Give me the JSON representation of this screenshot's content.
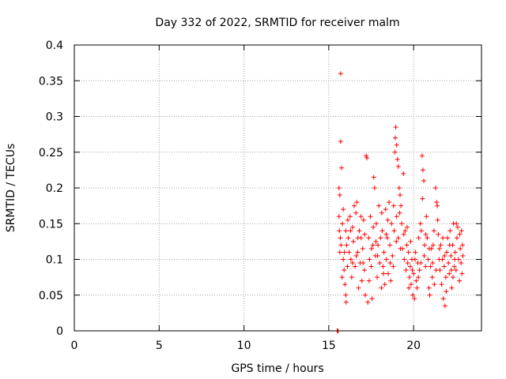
{
  "chart_data": {
    "type": "scatter",
    "title": "Day 332 of 2022, SRMTID for receiver malm",
    "xlabel": "GPS time / hours",
    "ylabel": "SRMTID / TECUs",
    "xlim": [
      0,
      24
    ],
    "ylim": [
      0,
      0.4
    ],
    "x_ticks": [
      0,
      5,
      10,
      15,
      20
    ],
    "x_tick_labels": [
      "0",
      "5",
      "10",
      "15",
      "20"
    ],
    "y_ticks": [
      0,
      0.05,
      0.1,
      0.15,
      0.2,
      0.25,
      0.3,
      0.35,
      0.4
    ],
    "y_tick_labels": [
      "0",
      "0.05",
      "0.1",
      "0.15",
      "0.2",
      "0.25",
      "0.3",
      "0.35",
      "0.4"
    ],
    "grid": true,
    "marker": "+",
    "series": [
      {
        "name": "SRMTID",
        "color": "#ff0000",
        "points": [
          [
            15.5,
            0.0
          ],
          [
            15.52,
            0.0
          ],
          [
            15.55,
            0.0
          ],
          [
            15.7,
            0.36
          ],
          [
            15.7,
            0.265
          ],
          [
            15.75,
            0.228
          ],
          [
            15.6,
            0.2
          ],
          [
            15.65,
            0.19
          ],
          [
            15.6,
            0.16
          ],
          [
            15.62,
            0.14
          ],
          [
            15.68,
            0.13
          ],
          [
            15.72,
            0.12
          ],
          [
            15.65,
            0.11
          ],
          [
            15.8,
            0.15
          ],
          [
            15.85,
            0.1
          ],
          [
            15.9,
            0.085
          ],
          [
            15.78,
            0.075
          ],
          [
            15.95,
            0.065
          ],
          [
            16.0,
            0.14
          ],
          [
            16.05,
            0.12
          ],
          [
            16.1,
            0.09
          ],
          [
            16.0,
            0.05
          ],
          [
            16.02,
            0.04
          ],
          [
            16.15,
            0.13
          ],
          [
            16.2,
            0.11
          ],
          [
            16.25,
            0.16
          ],
          [
            16.3,
            0.1
          ],
          [
            16.35,
            0.075
          ],
          [
            16.4,
            0.145
          ],
          [
            16.45,
            0.125
          ],
          [
            16.5,
            0.175
          ],
          [
            16.55,
            0.09
          ],
          [
            16.6,
            0.165
          ],
          [
            16.65,
            0.18
          ],
          [
            16.7,
            0.11
          ],
          [
            16.75,
            0.06
          ],
          [
            16.8,
            0.14
          ],
          [
            16.85,
            0.095
          ],
          [
            16.9,
            0.13
          ],
          [
            16.95,
            0.07
          ],
          [
            17.0,
            0.115
          ],
          [
            17.05,
            0.155
          ],
          [
            17.1,
            0.085
          ],
          [
            17.2,
            0.245
          ],
          [
            17.25,
            0.242
          ],
          [
            17.15,
            0.05
          ],
          [
            17.3,
            0.04
          ],
          [
            17.35,
            0.13
          ],
          [
            17.4,
            0.1
          ],
          [
            17.45,
            0.16
          ],
          [
            17.5,
            0.09
          ],
          [
            17.55,
            0.045
          ],
          [
            17.6,
            0.12
          ],
          [
            17.65,
            0.215
          ],
          [
            17.7,
            0.2
          ],
          [
            17.75,
            0.105
          ],
          [
            17.8,
            0.15
          ],
          [
            17.85,
            0.075
          ],
          [
            17.9,
            0.12
          ],
          [
            17.95,
            0.175
          ],
          [
            18.0,
            0.095
          ],
          [
            18.05,
            0.13
          ],
          [
            18.1,
            0.06
          ],
          [
            18.15,
            0.14
          ],
          [
            18.2,
            0.09
          ],
          [
            18.25,
            0.11
          ],
          [
            18.3,
            0.065
          ],
          [
            18.35,
            0.17
          ],
          [
            18.4,
            0.1
          ],
          [
            18.45,
            0.13
          ],
          [
            18.5,
            0.08
          ],
          [
            18.55,
            0.18
          ],
          [
            18.6,
            0.12
          ],
          [
            18.65,
            0.07
          ],
          [
            18.7,
            0.15
          ],
          [
            18.75,
            0.105
          ],
          [
            18.8,
            0.09
          ],
          [
            18.85,
            0.14
          ],
          [
            18.9,
            0.25
          ],
          [
            18.92,
            0.27
          ],
          [
            18.95,
            0.285
          ],
          [
            19.0,
            0.26
          ],
          [
            19.05,
            0.24
          ],
          [
            19.1,
            0.23
          ],
          [
            19.15,
            0.2
          ],
          [
            19.2,
            0.19
          ],
          [
            19.25,
            0.175
          ],
          [
            19.0,
            0.16
          ],
          [
            19.1,
            0.13
          ],
          [
            19.3,
            0.15
          ],
          [
            19.35,
            0.115
          ],
          [
            19.4,
            0.22
          ],
          [
            19.45,
            0.1
          ],
          [
            19.5,
            0.14
          ],
          [
            19.55,
            0.085
          ],
          [
            19.6,
            0.12
          ],
          [
            19.65,
            0.095
          ],
          [
            19.7,
            0.11
          ],
          [
            19.75,
            0.075
          ],
          [
            19.8,
            0.09
          ],
          [
            19.85,
            0.065
          ],
          [
            19.9,
            0.1
          ],
          [
            19.95,
            0.05
          ],
          [
            20.0,
            0.08
          ],
          [
            20.05,
            0.045
          ],
          [
            20.1,
            0.11
          ],
          [
            20.15,
            0.07
          ],
          [
            20.2,
            0.06
          ],
          [
            20.25,
            0.095
          ],
          [
            20.3,
            0.13
          ],
          [
            20.35,
            0.085
          ],
          [
            20.4,
            0.15
          ],
          [
            20.45,
            0.14
          ],
          [
            20.5,
            0.245
          ],
          [
            20.55,
            0.225
          ],
          [
            20.6,
            0.21
          ],
          [
            20.65,
            0.12
          ],
          [
            20.7,
            0.09
          ],
          [
            20.75,
            0.16
          ],
          [
            20.8,
            0.13
          ],
          [
            20.85,
            0.1
          ],
          [
            20.9,
            0.06
          ],
          [
            20.95,
            0.05
          ],
          [
            21.0,
            0.09
          ],
          [
            21.05,
            0.115
          ],
          [
            21.1,
            0.075
          ],
          [
            21.15,
            0.12
          ],
          [
            21.2,
            0.14
          ],
          [
            21.3,
            0.2
          ],
          [
            21.35,
            0.18
          ],
          [
            21.4,
            0.175
          ],
          [
            21.45,
            0.135
          ],
          [
            21.5,
            0.1
          ],
          [
            21.55,
            0.085
          ],
          [
            21.6,
            0.12
          ],
          [
            21.65,
            0.065
          ],
          [
            21.7,
            0.1
          ],
          [
            21.75,
            0.045
          ],
          [
            21.8,
            0.09
          ],
          [
            21.85,
            0.035
          ],
          [
            21.9,
            0.075
          ],
          [
            21.95,
            0.11
          ],
          [
            22.0,
            0.13
          ],
          [
            22.05,
            0.095
          ],
          [
            22.1,
            0.08
          ],
          [
            22.15,
            0.14
          ],
          [
            22.2,
            0.105
          ],
          [
            22.25,
            0.06
          ],
          [
            22.3,
            0.12
          ],
          [
            22.35,
            0.15
          ],
          [
            22.4,
            0.09
          ],
          [
            22.45,
            0.11
          ],
          [
            22.5,
            0.085
          ],
          [
            22.55,
            0.13
          ],
          [
            22.6,
            0.145
          ],
          [
            22.65,
            0.1
          ],
          [
            22.7,
            0.07
          ],
          [
            22.75,
            0.115
          ],
          [
            22.8,
            0.095
          ],
          [
            22.85,
            0.08
          ],
          [
            22.9,
            0.105
          ],
          [
            15.85,
            0.17
          ],
          [
            16.12,
            0.155
          ],
          [
            16.4,
            0.095
          ],
          [
            16.62,
            0.105
          ],
          [
            16.9,
            0.16
          ],
          [
            17.12,
            0.135
          ],
          [
            17.38,
            0.07
          ],
          [
            17.62,
            0.145
          ],
          [
            17.88,
            0.105
          ],
          [
            18.12,
            0.165
          ],
          [
            18.38,
            0.135
          ],
          [
            18.62,
            0.095
          ],
          [
            18.82,
            0.175
          ],
          [
            19.18,
            0.165
          ],
          [
            19.42,
            0.135
          ],
          [
            19.62,
            0.145
          ],
          [
            19.82,
            0.125
          ],
          [
            20.08,
            0.1
          ],
          [
            20.28,
            0.075
          ],
          [
            20.52,
            0.185
          ],
          [
            20.72,
            0.135
          ],
          [
            20.92,
            0.115
          ],
          [
            21.12,
            0.095
          ],
          [
            21.32,
            0.085
          ],
          [
            21.52,
            0.115
          ],
          [
            21.72,
            0.13
          ],
          [
            21.92,
            0.055
          ],
          [
            22.12,
            0.12
          ],
          [
            22.32,
            0.075
          ],
          [
            22.52,
            0.15
          ],
          [
            22.72,
            0.135
          ],
          [
            22.88,
            0.12
          ],
          [
            16.28,
            0.14
          ],
          [
            17.02,
            0.095
          ],
          [
            17.78,
            0.125
          ],
          [
            18.48,
            0.155
          ],
          [
            19.22,
            0.115
          ],
          [
            19.92,
            0.085
          ],
          [
            20.62,
            0.105
          ],
          [
            21.22,
            0.065
          ],
          [
            21.82,
            0.105
          ],
          [
            22.42,
            0.1
          ],
          [
            15.92,
            0.11
          ],
          [
            16.72,
            0.13
          ],
          [
            17.52,
            0.115
          ],
          [
            18.22,
            0.08
          ],
          [
            18.98,
            0.125
          ],
          [
            19.72,
            0.06
          ],
          [
            20.42,
            0.095
          ],
          [
            21.42,
            0.155
          ],
          [
            22.22,
            0.085
          ],
          [
            22.82,
            0.14
          ]
        ]
      }
    ]
  }
}
